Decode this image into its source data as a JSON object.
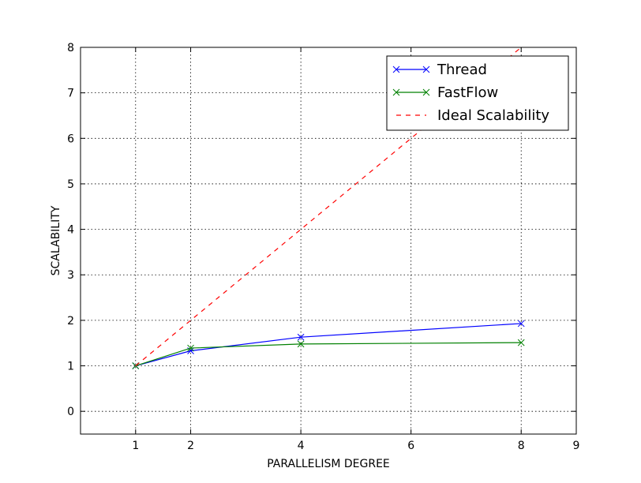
{
  "chart_data": {
    "type": "line",
    "title": "",
    "xlabel": "PARALLELISM DEGREE",
    "ylabel": "SCALABILITY",
    "xlim": [
      0,
      9
    ],
    "ylim": [
      -0.5,
      8
    ],
    "xticks": [
      1,
      2,
      4,
      6,
      8,
      9
    ],
    "yticks": [
      0,
      1,
      2,
      3,
      4,
      5,
      6,
      7,
      8
    ],
    "grid": true,
    "legend_position": "top-right",
    "series": [
      {
        "name": "Thread",
        "x": [
          1,
          2,
          4,
          8
        ],
        "y": [
          1.0,
          1.33,
          1.63,
          1.93
        ],
        "color": "#0000ff",
        "style": "solid",
        "marker": "x"
      },
      {
        "name": "FastFlow",
        "x": [
          1,
          2,
          4,
          8
        ],
        "y": [
          1.0,
          1.39,
          1.48,
          1.51
        ],
        "color": "#008000",
        "style": "solid",
        "marker": "x"
      },
      {
        "name": "Ideal Scalability",
        "x": [
          1,
          8
        ],
        "y": [
          1,
          8
        ],
        "color": "#ff0000",
        "style": "dashed",
        "marker": "none"
      }
    ]
  }
}
